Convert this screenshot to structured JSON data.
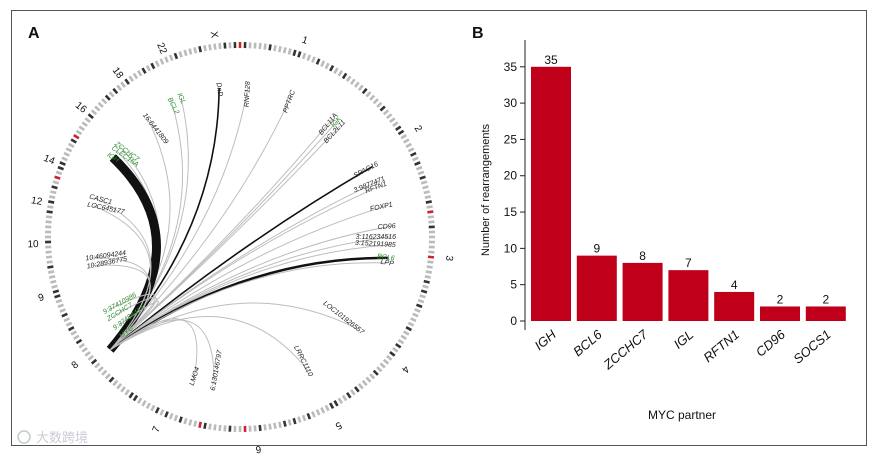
{
  "panels": {
    "a": "A",
    "b": "B"
  },
  "colors": {
    "bar": "#c0001a",
    "green": "#2f8f2f",
    "dark": "#111111"
  },
  "circos": {
    "chromosomes": [
      "1",
      "2",
      "3",
      "4",
      "5",
      "6",
      "7",
      "8",
      "9",
      "10",
      "12",
      "14",
      "16",
      "18",
      "22",
      "X"
    ],
    "genes": [
      {
        "label": "RNF128",
        "color": "dark",
        "w": 1
      },
      {
        "label": "DnD",
        "color": "dark",
        "w": 1.6
      },
      {
        "label": "IGL",
        "color": "green",
        "w": 1
      },
      {
        "label": "BCL2",
        "color": "green",
        "w": 1
      },
      {
        "label": "16:6441809",
        "color": "dark",
        "w": 1
      },
      {
        "label": "ZCCHC7",
        "color": "green",
        "w": 1
      },
      {
        "label": "CLEC16A",
        "color": "green",
        "w": 1
      },
      {
        "label": "IGH",
        "color": "green",
        "w": 9
      },
      {
        "label": "PPTRC",
        "color": "dark",
        "w": 1
      },
      {
        "label": "BCL11A",
        "color": "dark",
        "w": 1
      },
      {
        "label": "IGK",
        "color": "green",
        "w": 1
      },
      {
        "label": "BCL2L11",
        "color": "dark",
        "w": 1
      },
      {
        "label": "SPAG16",
        "color": "dark",
        "w": 1.6
      },
      {
        "label": "3:9877471",
        "color": "dark",
        "w": 1
      },
      {
        "label": "RFTN1",
        "color": "dark",
        "w": 1
      },
      {
        "label": "FOXP1",
        "color": "dark",
        "w": 1
      },
      {
        "label": "CD96",
        "color": "dark",
        "w": 1
      },
      {
        "label": "3:116234516",
        "color": "dark",
        "w": 1
      },
      {
        "label": "3:152191985",
        "color": "dark",
        "w": 1
      },
      {
        "label": "BCL6",
        "color": "green",
        "w": 2.5
      },
      {
        "label": "LPP",
        "color": "dark",
        "w": 1
      },
      {
        "label": "CASC1",
        "color": "dark",
        "w": 1
      },
      {
        "label": "LOC645177",
        "color": "dark",
        "w": 1
      },
      {
        "label": "10:46094244",
        "color": "dark",
        "w": 1
      },
      {
        "label": "10:28936775",
        "color": "dark",
        "w": 1
      },
      {
        "label": "9:37410986",
        "color": "green",
        "w": 1
      },
      {
        "label": "ZCCHC7",
        "color": "green",
        "w": 1
      },
      {
        "label": "9:37484414",
        "color": "green",
        "w": 1
      },
      {
        "label": "MYC",
        "color": "green",
        "w": 1
      },
      {
        "label": "LOC101926557",
        "color": "dark",
        "w": 1
      },
      {
        "label": "LRRC1110",
        "color": "dark",
        "w": 1
      },
      {
        "label": "6:130146797",
        "color": "dark",
        "w": 1
      },
      {
        "label": "LMO4",
        "color": "dark",
        "w": 1
      }
    ]
  },
  "chart_data": {
    "type": "bar",
    "title": "",
    "categories": [
      "IGH",
      "BCL6",
      "ZCCHC7",
      "IGL",
      "RFTN1",
      "CD96",
      "SOCS1"
    ],
    "values": [
      35,
      9,
      8,
      7,
      4,
      2,
      2
    ],
    "value_labels": [
      "35",
      "9",
      "8",
      "7",
      "4",
      "2",
      "2"
    ],
    "xlabel": "MYC partner",
    "ylabel": "Number of rearrangements",
    "ylim": [
      0,
      38
    ],
    "yticks": [
      0,
      5,
      10,
      15,
      20,
      25,
      30,
      35
    ],
    "ytick_labels": [
      "0",
      "5",
      "10",
      "15",
      "20",
      "25",
      "30",
      "35"
    ],
    "grid": false,
    "bar_color": "#c0001a"
  },
  "watermark": "大数跨境"
}
